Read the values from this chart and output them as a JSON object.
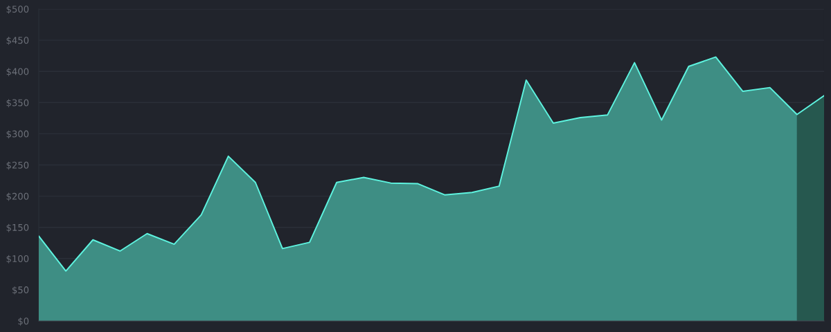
{
  "chart_data": {
    "type": "area",
    "categories": [
      null,
      null,
      null,
      null,
      null,
      null,
      null,
      null,
      null,
      null,
      null,
      null,
      null,
      null,
      null,
      null,
      null,
      null,
      null,
      null,
      null,
      null,
      null,
      null,
      null,
      null,
      null,
      null,
      null,
      null
    ],
    "ylim": [
      0,
      500
    ],
    "yticks": [
      {
        "value": 0,
        "label": "$0"
      },
      {
        "value": 50,
        "label": "$50"
      },
      {
        "value": 100,
        "label": "$100"
      },
      {
        "value": 150,
        "label": "$150"
      },
      {
        "value": 200,
        "label": "$200"
      },
      {
        "value": 250,
        "label": "$250"
      },
      {
        "value": 300,
        "label": "$300"
      },
      {
        "value": 350,
        "label": "$350"
      },
      {
        "value": 400,
        "label": "$400"
      },
      {
        "value": 450,
        "label": "$450"
      },
      {
        "value": 500,
        "label": "$500"
      }
    ],
    "grid": "y",
    "tick_labels": "y",
    "series": [
      {
        "color": "#3e8e84",
        "values": [
          136,
          80,
          130,
          112,
          140,
          123,
          170,
          264,
          222,
          116,
          126,
          222,
          230,
          221,
          220,
          202,
          206,
          216,
          386,
          317,
          326,
          330,
          414,
          322,
          408,
          423,
          368,
          374,
          331,
          null
        ]
      },
      {
        "color": "#26584f",
        "values": [
          null,
          null,
          null,
          null,
          null,
          null,
          null,
          null,
          null,
          null,
          null,
          null,
          null,
          null,
          null,
          null,
          null,
          null,
          null,
          null,
          null,
          null,
          null,
          null,
          null,
          null,
          null,
          null,
          331,
          361
        ]
      },
      {
        "type": "line",
        "color": "#5ef3df",
        "values": [
          136,
          80,
          130,
          112,
          140,
          123,
          170,
          264,
          222,
          116,
          126,
          222,
          230,
          221,
          220,
          202,
          206,
          216,
          386,
          317,
          326,
          330,
          414,
          322,
          408,
          423,
          368,
          374,
          331,
          361
        ]
      }
    ]
  }
}
